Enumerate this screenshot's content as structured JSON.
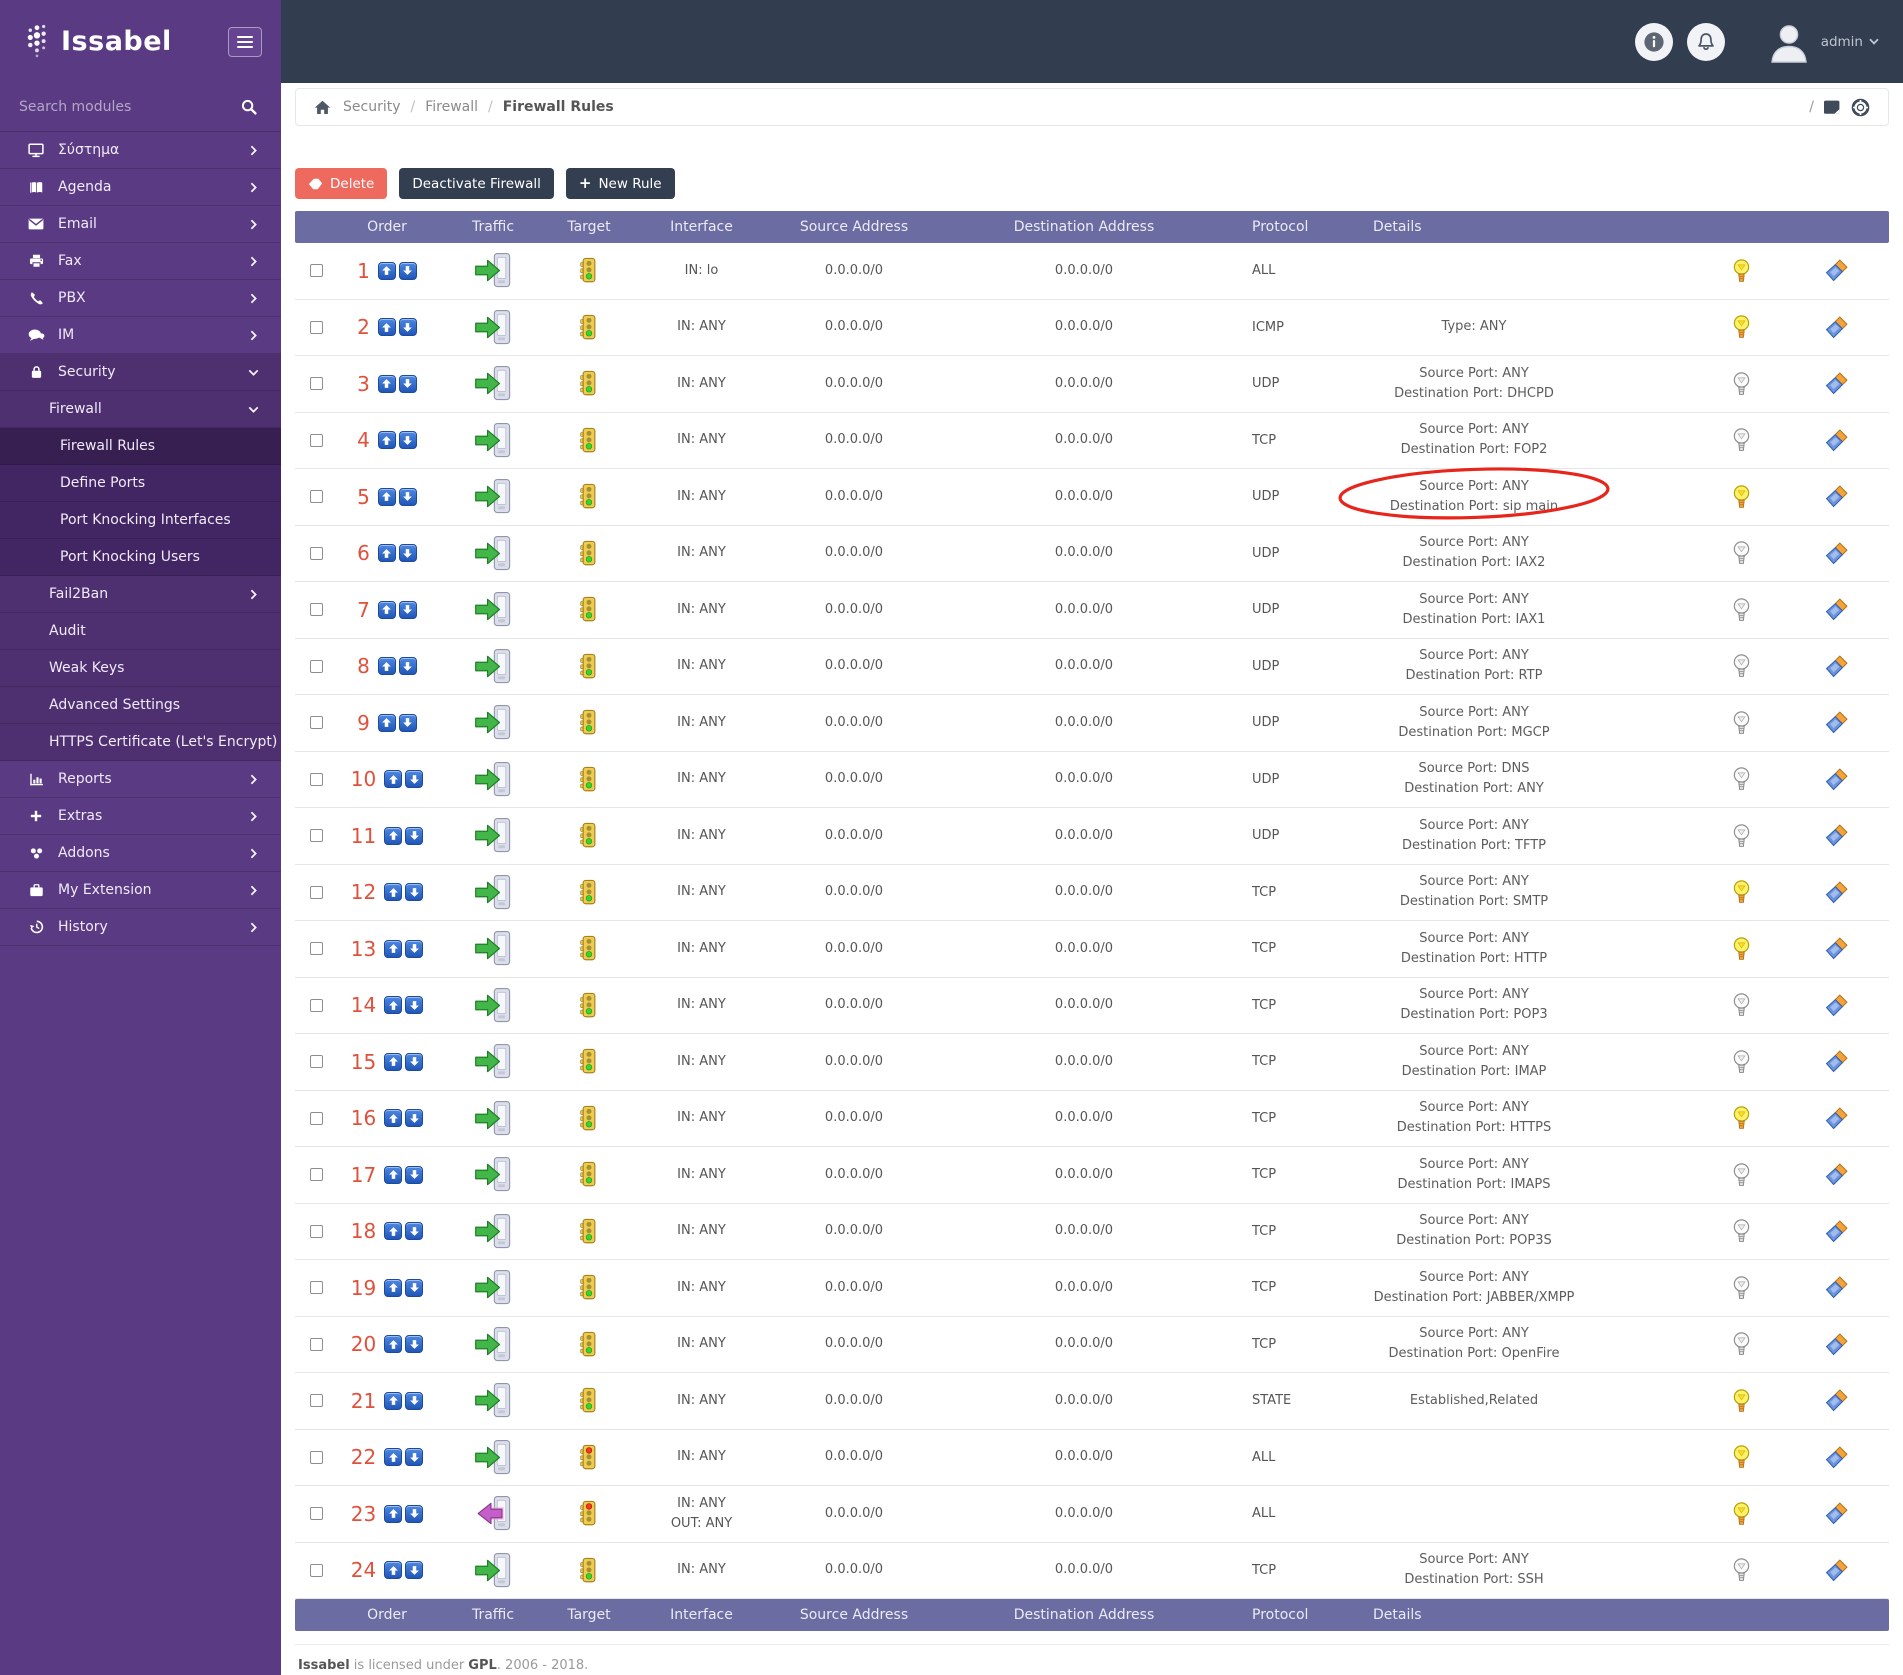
{
  "brand": {
    "name": "Issabel"
  },
  "topbar": {
    "user_label": "admin"
  },
  "sidebar": {
    "search_placeholder": "Search modules",
    "items": [
      {
        "id": "system",
        "label": "Σύστημα",
        "icon": "monitor-icon",
        "chevron": "right",
        "indent": 0
      },
      {
        "id": "agenda",
        "label": "Agenda",
        "icon": "book-icon",
        "chevron": "right",
        "indent": 0
      },
      {
        "id": "email",
        "label": "Email",
        "icon": "envelope-icon",
        "chevron": "right",
        "indent": 0
      },
      {
        "id": "fax",
        "label": "Fax",
        "icon": "printer-icon",
        "chevron": "right",
        "indent": 0
      },
      {
        "id": "pbx",
        "label": "PBX",
        "icon": "phone-icon",
        "chevron": "right",
        "indent": 0
      },
      {
        "id": "im",
        "label": "IM",
        "icon": "chat-icon",
        "chevron": "right",
        "indent": 0
      },
      {
        "id": "security",
        "label": "Security",
        "icon": "lock-icon",
        "chevron": "down",
        "indent": 0,
        "expanded": true
      },
      {
        "id": "firewall",
        "label": "Firewall",
        "chevron": "down",
        "indent": 1,
        "expanded": true
      },
      {
        "id": "firewall-rules",
        "label": "Firewall Rules",
        "indent": 2,
        "active": true
      },
      {
        "id": "define-ports",
        "label": "Define Ports",
        "indent": 2
      },
      {
        "id": "port-knocking-interfaces",
        "label": "Port Knocking Interfaces",
        "indent": 2
      },
      {
        "id": "port-knocking-users",
        "label": "Port Knocking Users",
        "indent": 2
      },
      {
        "id": "fail2ban",
        "label": "Fail2Ban",
        "chevron": "right",
        "indent": 1
      },
      {
        "id": "audit",
        "label": "Audit",
        "indent": 1
      },
      {
        "id": "weak-keys",
        "label": "Weak Keys",
        "indent": 1
      },
      {
        "id": "advanced-settings",
        "label": "Advanced Settings",
        "indent": 1
      },
      {
        "id": "https-certificate",
        "label": "HTTPS Certificate (Let's Encrypt)",
        "indent": 1
      },
      {
        "id": "reports",
        "label": "Reports",
        "icon": "chart-icon",
        "chevron": "right",
        "indent": 0
      },
      {
        "id": "extras",
        "label": "Extras",
        "icon": "plus-icon",
        "chevron": "right",
        "indent": 0
      },
      {
        "id": "addons",
        "label": "Addons",
        "icon": "addons-icon",
        "chevron": "right",
        "indent": 0
      },
      {
        "id": "my-extension",
        "label": "My Extension",
        "icon": "briefcase-icon",
        "chevron": "right",
        "indent": 0
      },
      {
        "id": "history",
        "label": "History",
        "icon": "history-icon",
        "chevron": "right",
        "indent": 0
      }
    ]
  },
  "breadcrumb": {
    "items": [
      "Security",
      "Firewall",
      "Firewall Rules"
    ]
  },
  "actions": {
    "delete_label": "Delete",
    "deactivate_label": "Deactivate Firewall",
    "new_rule_label": "New Rule"
  },
  "table": {
    "columns": [
      "Order",
      "Traffic",
      "Target",
      "Interface",
      "Source Address",
      "Destination Address",
      "Protocol",
      "Details"
    ],
    "rows": [
      {
        "order": "1",
        "traffic": "in",
        "target": "accept",
        "interface": [
          "IN: lo"
        ],
        "source": "0.0.0.0/0",
        "destination": "0.0.0.0/0",
        "protocol": "ALL",
        "details": [],
        "bulb": "on",
        "annotated": false
      },
      {
        "order": "2",
        "traffic": "in",
        "target": "accept",
        "interface": [
          "IN: ANY"
        ],
        "source": "0.0.0.0/0",
        "destination": "0.0.0.0/0",
        "protocol": "ICMP",
        "details": [
          "Type: ANY"
        ],
        "bulb": "on",
        "annotated": false
      },
      {
        "order": "3",
        "traffic": "in",
        "target": "accept",
        "interface": [
          "IN: ANY"
        ],
        "source": "0.0.0.0/0",
        "destination": "0.0.0.0/0",
        "protocol": "UDP",
        "details": [
          "Source Port: ANY",
          "Destination Port: DHCPD"
        ],
        "bulb": "off",
        "annotated": false
      },
      {
        "order": "4",
        "traffic": "in",
        "target": "accept",
        "interface": [
          "IN: ANY"
        ],
        "source": "0.0.0.0/0",
        "destination": "0.0.0.0/0",
        "protocol": "TCP",
        "details": [
          "Source Port: ANY",
          "Destination Port: FOP2"
        ],
        "bulb": "off",
        "annotated": false
      },
      {
        "order": "5",
        "traffic": "in",
        "target": "accept",
        "interface": [
          "IN: ANY"
        ],
        "source": "0.0.0.0/0",
        "destination": "0.0.0.0/0",
        "protocol": "UDP",
        "details": [
          "Source Port: ANY",
          "Destination Port: sip main"
        ],
        "bulb": "on",
        "annotated": true
      },
      {
        "order": "6",
        "traffic": "in",
        "target": "accept",
        "interface": [
          "IN: ANY"
        ],
        "source": "0.0.0.0/0",
        "destination": "0.0.0.0/0",
        "protocol": "UDP",
        "details": [
          "Source Port: ANY",
          "Destination Port: IAX2"
        ],
        "bulb": "off",
        "annotated": false
      },
      {
        "order": "7",
        "traffic": "in",
        "target": "accept",
        "interface": [
          "IN: ANY"
        ],
        "source": "0.0.0.0/0",
        "destination": "0.0.0.0/0",
        "protocol": "UDP",
        "details": [
          "Source Port: ANY",
          "Destination Port: IAX1"
        ],
        "bulb": "off",
        "annotated": false
      },
      {
        "order": "8",
        "traffic": "in",
        "target": "accept",
        "interface": [
          "IN: ANY"
        ],
        "source": "0.0.0.0/0",
        "destination": "0.0.0.0/0",
        "protocol": "UDP",
        "details": [
          "Source Port: ANY",
          "Destination Port: RTP"
        ],
        "bulb": "off",
        "annotated": false
      },
      {
        "order": "9",
        "traffic": "in",
        "target": "accept",
        "interface": [
          "IN: ANY"
        ],
        "source": "0.0.0.0/0",
        "destination": "0.0.0.0/0",
        "protocol": "UDP",
        "details": [
          "Source Port: ANY",
          "Destination Port: MGCP"
        ],
        "bulb": "off",
        "annotated": false
      },
      {
        "order": "10",
        "traffic": "in",
        "target": "accept",
        "interface": [
          "IN: ANY"
        ],
        "source": "0.0.0.0/0",
        "destination": "0.0.0.0/0",
        "protocol": "UDP",
        "details": [
          "Source Port: DNS",
          "Destination Port: ANY"
        ],
        "bulb": "off",
        "annotated": false
      },
      {
        "order": "11",
        "traffic": "in",
        "target": "accept",
        "interface": [
          "IN: ANY"
        ],
        "source": "0.0.0.0/0",
        "destination": "0.0.0.0/0",
        "protocol": "UDP",
        "details": [
          "Source Port: ANY",
          "Destination Port: TFTP"
        ],
        "bulb": "off",
        "annotated": false
      },
      {
        "order": "12",
        "traffic": "in",
        "target": "accept",
        "interface": [
          "IN: ANY"
        ],
        "source": "0.0.0.0/0",
        "destination": "0.0.0.0/0",
        "protocol": "TCP",
        "details": [
          "Source Port: ANY",
          "Destination Port: SMTP"
        ],
        "bulb": "on",
        "annotated": false
      },
      {
        "order": "13",
        "traffic": "in",
        "target": "accept",
        "interface": [
          "IN: ANY"
        ],
        "source": "0.0.0.0/0",
        "destination": "0.0.0.0/0",
        "protocol": "TCP",
        "details": [
          "Source Port: ANY",
          "Destination Port: HTTP"
        ],
        "bulb": "on",
        "annotated": false
      },
      {
        "order": "14",
        "traffic": "in",
        "target": "accept",
        "interface": [
          "IN: ANY"
        ],
        "source": "0.0.0.0/0",
        "destination": "0.0.0.0/0",
        "protocol": "TCP",
        "details": [
          "Source Port: ANY",
          "Destination Port: POP3"
        ],
        "bulb": "off",
        "annotated": false
      },
      {
        "order": "15",
        "traffic": "in",
        "target": "accept",
        "interface": [
          "IN: ANY"
        ],
        "source": "0.0.0.0/0",
        "destination": "0.0.0.0/0",
        "protocol": "TCP",
        "details": [
          "Source Port: ANY",
          "Destination Port: IMAP"
        ],
        "bulb": "off",
        "annotated": false
      },
      {
        "order": "16",
        "traffic": "in",
        "target": "accept",
        "interface": [
          "IN: ANY"
        ],
        "source": "0.0.0.0/0",
        "destination": "0.0.0.0/0",
        "protocol": "TCP",
        "details": [
          "Source Port: ANY",
          "Destination Port: HTTPS"
        ],
        "bulb": "on",
        "annotated": false
      },
      {
        "order": "17",
        "traffic": "in",
        "target": "accept",
        "interface": [
          "IN: ANY"
        ],
        "source": "0.0.0.0/0",
        "destination": "0.0.0.0/0",
        "protocol": "TCP",
        "details": [
          "Source Port: ANY",
          "Destination Port: IMAPS"
        ],
        "bulb": "off",
        "annotated": false
      },
      {
        "order": "18",
        "traffic": "in",
        "target": "accept",
        "interface": [
          "IN: ANY"
        ],
        "source": "0.0.0.0/0",
        "destination": "0.0.0.0/0",
        "protocol": "TCP",
        "details": [
          "Source Port: ANY",
          "Destination Port: POP3S"
        ],
        "bulb": "off",
        "annotated": false
      },
      {
        "order": "19",
        "traffic": "in",
        "target": "accept",
        "interface": [
          "IN: ANY"
        ],
        "source": "0.0.0.0/0",
        "destination": "0.0.0.0/0",
        "protocol": "TCP",
        "details": [
          "Source Port: ANY",
          "Destination Port: JABBER/XMPP"
        ],
        "bulb": "off",
        "annotated": false
      },
      {
        "order": "20",
        "traffic": "in",
        "target": "accept",
        "interface": [
          "IN: ANY"
        ],
        "source": "0.0.0.0/0",
        "destination": "0.0.0.0/0",
        "protocol": "TCP",
        "details": [
          "Source Port: ANY",
          "Destination Port: OpenFire"
        ],
        "bulb": "off",
        "annotated": false
      },
      {
        "order": "21",
        "traffic": "in",
        "target": "accept",
        "interface": [
          "IN: ANY"
        ],
        "source": "0.0.0.0/0",
        "destination": "0.0.0.0/0",
        "protocol": "STATE",
        "details": [
          "Established,Related"
        ],
        "bulb": "on",
        "annotated": false
      },
      {
        "order": "22",
        "traffic": "in",
        "target": "reject",
        "interface": [
          "IN: ANY"
        ],
        "source": "0.0.0.0/0",
        "destination": "0.0.0.0/0",
        "protocol": "ALL",
        "details": [],
        "bulb": "on",
        "annotated": false
      },
      {
        "order": "23",
        "traffic": "out",
        "target": "reject",
        "interface": [
          "IN: ANY",
          "OUT: ANY"
        ],
        "source": "0.0.0.0/0",
        "destination": "0.0.0.0/0",
        "protocol": "ALL",
        "details": [],
        "bulb": "on",
        "annotated": false
      },
      {
        "order": "24",
        "traffic": "in",
        "target": "accept",
        "interface": [
          "IN: ANY"
        ],
        "source": "0.0.0.0/0",
        "destination": "0.0.0.0/0",
        "protocol": "TCP",
        "details": [
          "Source Port: ANY",
          "Destination Port: SSH"
        ],
        "bulb": "off",
        "annotated": false
      }
    ]
  },
  "footer": {
    "brand": "Issabel",
    "middle": " is licensed under ",
    "license": "GPL",
    "suffix": ". 2006 - 2018."
  },
  "colors": {
    "sidebar_purple": "#5a3a82",
    "sidebar_group": "#4e3070",
    "sidebar_subgroup": "#422663",
    "sidebar_active": "#371f52",
    "topbar_dark": "#323e50",
    "table_header": "#6b6ca1",
    "delete_button": "#ee6a5f",
    "dark_button": "#333e51",
    "order_number": "#e0513c",
    "move_button_blue": "#2d6fd2",
    "annotation_red": "#e8251a",
    "accept_green": "#39d42c",
    "reject_red": "#ef3b20",
    "bulb_on_yellow": "#fdf06a"
  }
}
